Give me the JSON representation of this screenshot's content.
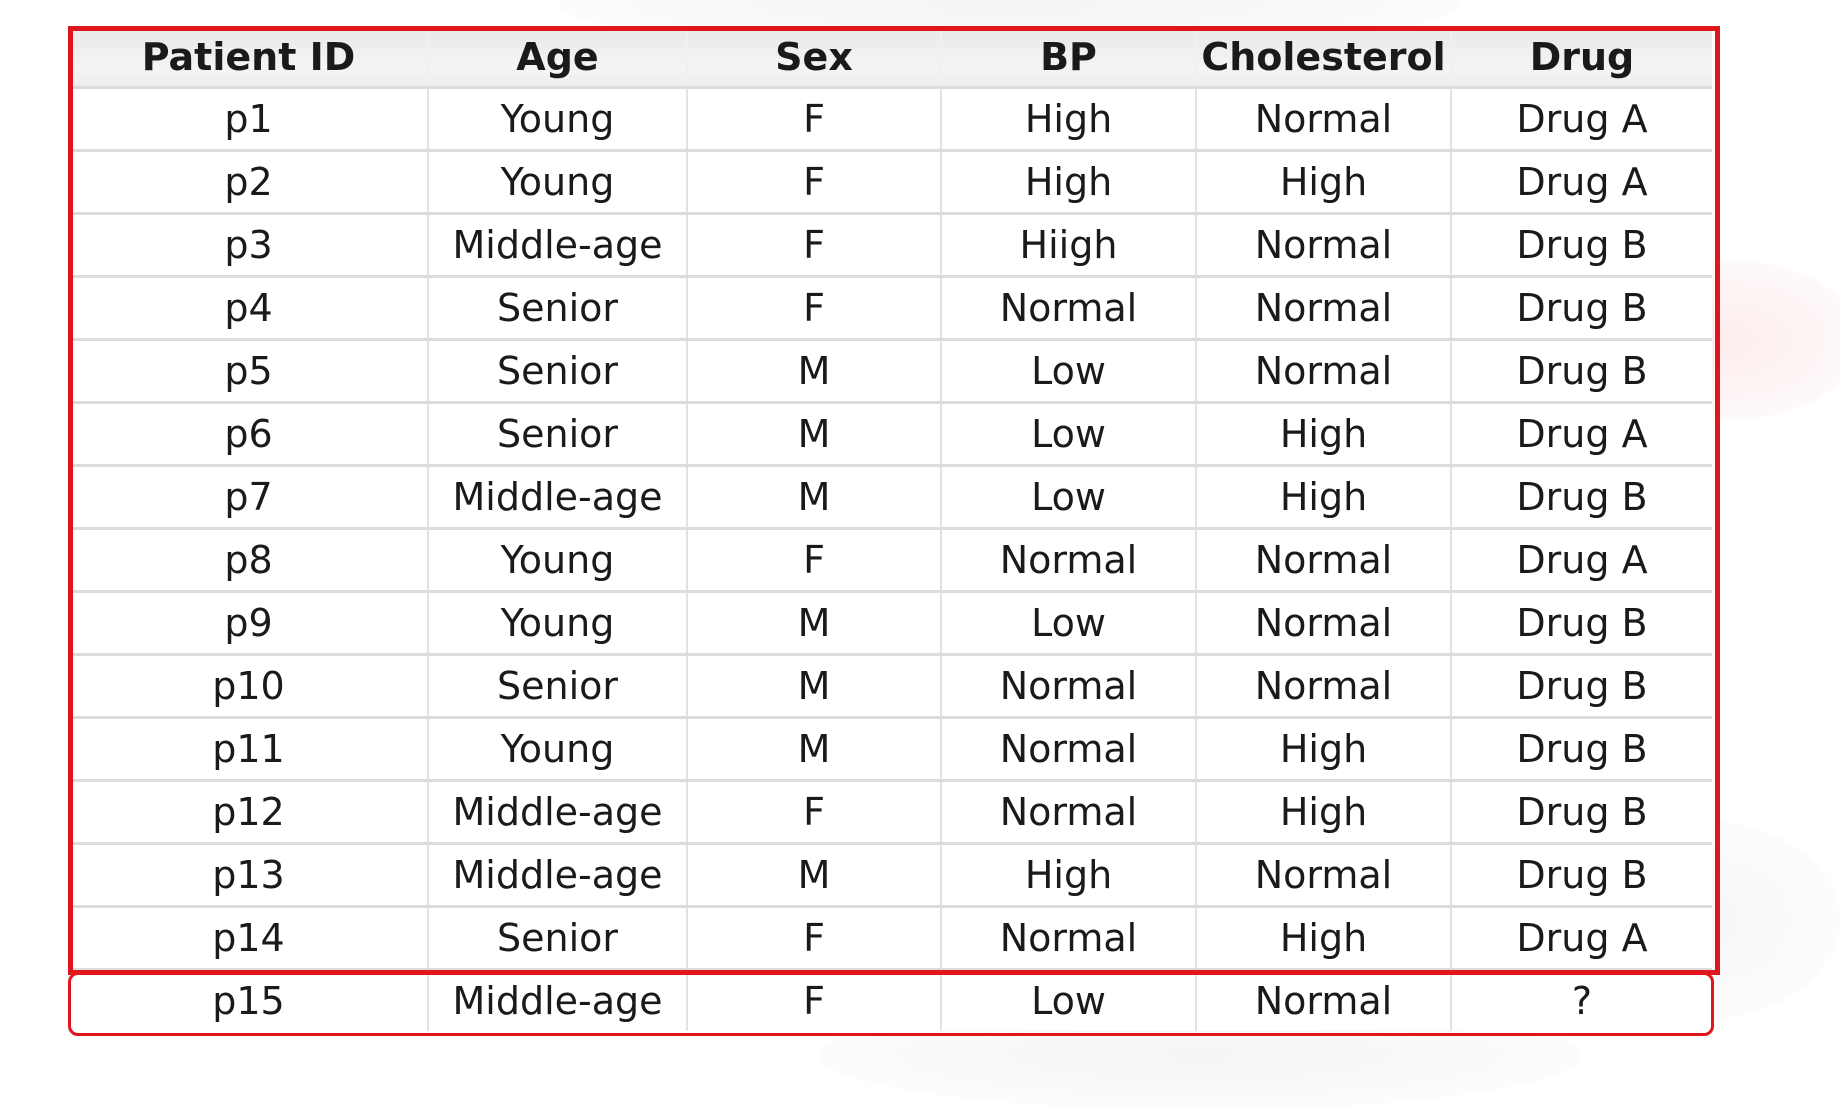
{
  "table": {
    "headers": [
      "Patient ID",
      "Age",
      "Sex",
      "BP",
      "Cholesterol",
      "Drug"
    ],
    "rows": [
      [
        "p1",
        "Young",
        "F",
        "High",
        "Normal",
        "Drug A"
      ],
      [
        "p2",
        "Young",
        "F",
        "High",
        "High",
        "Drug A"
      ],
      [
        "p3",
        "Middle-age",
        "F",
        "Hiigh",
        "Normal",
        "Drug B"
      ],
      [
        "p4",
        "Senior",
        "F",
        "Normal",
        "Normal",
        "Drug B"
      ],
      [
        "p5",
        "Senior",
        "M",
        "Low",
        "Normal",
        "Drug B"
      ],
      [
        "p6",
        "Senior",
        "M",
        "Low",
        "High",
        "Drug A"
      ],
      [
        "p7",
        "Middle-age",
        "M",
        "Low",
        "High",
        "Drug B"
      ],
      [
        "p8",
        "Young",
        "F",
        "Normal",
        "Normal",
        "Drug A"
      ],
      [
        "p9",
        "Young",
        "M",
        "Low",
        "Normal",
        "Drug B"
      ],
      [
        "p10",
        "Senior",
        "M",
        "Normal",
        "Normal",
        "Drug B"
      ],
      [
        "p11",
        "Young",
        "M",
        "Normal",
        "High",
        "Drug B"
      ],
      [
        "p12",
        "Middle-age",
        "F",
        "Normal",
        "High",
        "Drug B"
      ],
      [
        "p13",
        "Middle-age",
        "M",
        "High",
        "Normal",
        "Drug B"
      ],
      [
        "p14",
        "Senior",
        "F",
        "Normal",
        "High",
        "Drug A"
      ],
      [
        "p15",
        "Middle-age",
        "F",
        "Low",
        "Normal",
        "?"
      ]
    ]
  },
  "colors": {
    "highlight_border": "#e0161c",
    "header_background": "#eeeeee",
    "grid_line": "#dcdcdc"
  }
}
